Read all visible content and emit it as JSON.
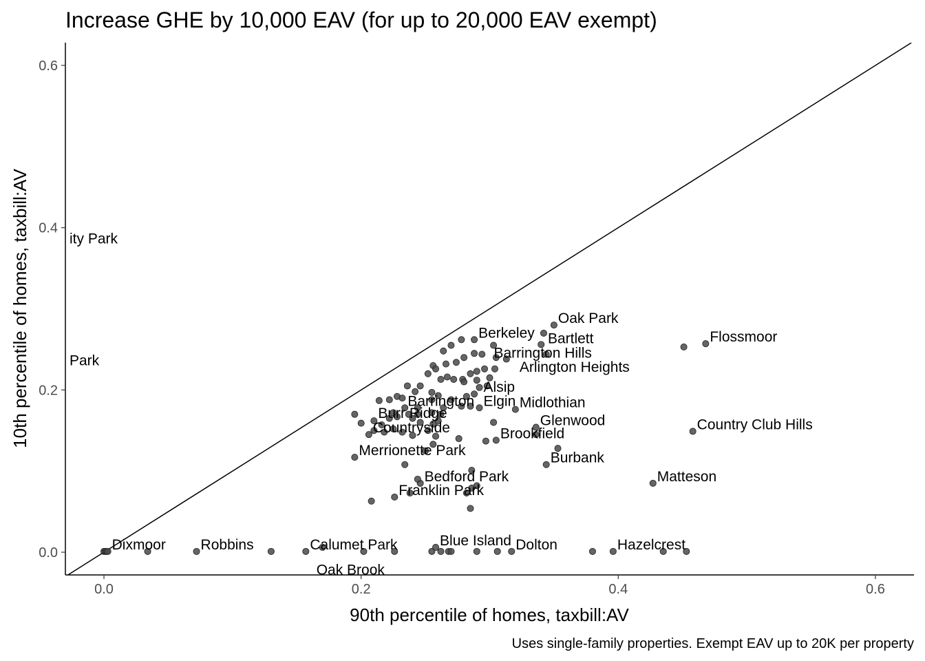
{
  "chart_data": {
    "type": "scatter",
    "title": "Increase GHE by 10,000 EAV (for up to 20,000 EAV exempt)",
    "xlabel": "90th percentile of homes, taxbill:AV",
    "ylabel": "10th percentile of homes, taxbill:AV",
    "caption": "Uses single-family properties. Exempt EAV up to 20K per property",
    "xlim": [
      -0.03,
      0.63
    ],
    "ylim": [
      -0.028,
      0.628
    ],
    "x_ticks": [
      "0.0",
      "0.2",
      "0.4",
      "0.6"
    ],
    "y_ticks": [
      "0.0",
      "0.2",
      "0.4",
      "0.6"
    ],
    "x_tick_values": [
      0.0,
      0.2,
      0.4,
      0.6
    ],
    "y_tick_values": [
      0.0,
      0.2,
      0.4,
      0.6
    ],
    "reference_line": "y = x",
    "grid": false,
    "labeled_points": [
      {
        "label": "Oak Park",
        "x": 0.35,
        "y": 0.28
      },
      {
        "label": "Flossmoor",
        "x": 0.468,
        "y": 0.257
      },
      {
        "label": "Berkeley",
        "x": 0.288,
        "y": 0.262
      },
      {
        "label": "Bartlett",
        "x": 0.342,
        "y": 0.255
      },
      {
        "label": "Barrington Hills",
        "x": 0.3,
        "y": 0.237
      },
      {
        "label": "Arlington Heights",
        "x": 0.32,
        "y": 0.22
      },
      {
        "label": "Alsip",
        "x": 0.292,
        "y": 0.195
      },
      {
        "label": "Midlothian",
        "x": 0.32,
        "y": 0.176
      },
      {
        "label": "Barrington",
        "x": 0.233,
        "y": 0.178
      },
      {
        "label": "Elgin",
        "x": 0.292,
        "y": 0.178
      },
      {
        "label": "Burr Ridge",
        "x": 0.21,
        "y": 0.163
      },
      {
        "label": "Glenwood",
        "x": 0.336,
        "y": 0.154
      },
      {
        "label": "Country Club Hills",
        "x": 0.458,
        "y": 0.149
      },
      {
        "label": "Countryside",
        "x": 0.206,
        "y": 0.145
      },
      {
        "label": "Brookfield",
        "x": 0.305,
        "y": 0.138
      },
      {
        "label": "Merrionette Park",
        "x": 0.195,
        "y": 0.117
      },
      {
        "label": "Burbank",
        "x": 0.344,
        "y": 0.108
      },
      {
        "label": "Matteson",
        "x": 0.427,
        "y": 0.085
      },
      {
        "label": "Bedford Park",
        "x": 0.246,
        "y": 0.085
      },
      {
        "label": "Franklin Park",
        "x": 0.226,
        "y": 0.068
      },
      {
        "label": "Dixmoor",
        "x": 0.003,
        "y": 0.001
      },
      {
        "label": "Robbins",
        "x": 0.072,
        "y": 0.001
      },
      {
        "label": "Calumet Park",
        "x": 0.157,
        "y": 0.001
      },
      {
        "label": "Blue Island",
        "x": 0.258,
        "y": 0.006
      },
      {
        "label": "Dolton",
        "x": 0.317,
        "y": 0.001
      },
      {
        "label": "Hazelcrest",
        "x": 0.396,
        "y": 0.001
      },
      {
        "label": "ity Park",
        "x": -0.03,
        "y": 0.378
      },
      {
        "label": "Park",
        "x": -0.03,
        "y": 0.228
      },
      {
        "label": "Oak Brook",
        "x": 0.162,
        "y": -0.03
      }
    ],
    "points": [
      [
        0.0,
        0.001
      ],
      [
        0.001,
        0.001
      ],
      [
        0.002,
        0.001
      ],
      [
        0.003,
        0.001
      ],
      [
        0.034,
        0.001
      ],
      [
        0.072,
        0.001
      ],
      [
        0.13,
        0.001
      ],
      [
        0.157,
        0.001
      ],
      [
        0.17,
        0.006
      ],
      [
        0.202,
        0.001
      ],
      [
        0.226,
        0.001
      ],
      [
        0.255,
        0.001
      ],
      [
        0.258,
        0.006
      ],
      [
        0.262,
        0.001
      ],
      [
        0.268,
        0.001
      ],
      [
        0.27,
        0.001
      ],
      [
        0.29,
        0.001
      ],
      [
        0.306,
        0.001
      ],
      [
        0.317,
        0.001
      ],
      [
        0.38,
        0.001
      ],
      [
        0.396,
        0.001
      ],
      [
        0.435,
        0.001
      ],
      [
        0.453,
        0.001
      ],
      [
        0.35,
        0.28
      ],
      [
        0.342,
        0.27
      ],
      [
        0.468,
        0.257
      ],
      [
        0.451,
        0.253
      ],
      [
        0.288,
        0.262
      ],
      [
        0.278,
        0.262
      ],
      [
        0.34,
        0.256
      ],
      [
        0.344,
        0.244
      ],
      [
        0.303,
        0.255
      ],
      [
        0.27,
        0.255
      ],
      [
        0.264,
        0.248
      ],
      [
        0.256,
        0.23
      ],
      [
        0.258,
        0.226
      ],
      [
        0.266,
        0.232
      ],
      [
        0.274,
        0.234
      ],
      [
        0.28,
        0.24
      ],
      [
        0.288,
        0.245
      ],
      [
        0.294,
        0.244
      ],
      [
        0.305,
        0.24
      ],
      [
        0.313,
        0.238
      ],
      [
        0.296,
        0.226
      ],
      [
        0.304,
        0.226
      ],
      [
        0.29,
        0.223
      ],
      [
        0.285,
        0.22
      ],
      [
        0.279,
        0.213
      ],
      [
        0.272,
        0.213
      ],
      [
        0.267,
        0.216
      ],
      [
        0.262,
        0.213
      ],
      [
        0.28,
        0.21
      ],
      [
        0.29,
        0.212
      ],
      [
        0.3,
        0.215
      ],
      [
        0.252,
        0.22
      ],
      [
        0.246,
        0.205
      ],
      [
        0.236,
        0.205
      ],
      [
        0.242,
        0.198
      ],
      [
        0.228,
        0.192
      ],
      [
        0.222,
        0.188
      ],
      [
        0.214,
        0.187
      ],
      [
        0.232,
        0.19
      ],
      [
        0.255,
        0.197
      ],
      [
        0.26,
        0.193
      ],
      [
        0.27,
        0.188
      ],
      [
        0.282,
        0.192
      ],
      [
        0.288,
        0.195
      ],
      [
        0.292,
        0.203
      ],
      [
        0.298,
        0.205
      ],
      [
        0.278,
        0.18
      ],
      [
        0.264,
        0.178
      ],
      [
        0.255,
        0.188
      ],
      [
        0.244,
        0.178
      ],
      [
        0.234,
        0.178
      ],
      [
        0.225,
        0.172
      ],
      [
        0.237,
        0.17
      ],
      [
        0.244,
        0.17
      ],
      [
        0.255,
        0.172
      ],
      [
        0.262,
        0.17
      ],
      [
        0.285,
        0.18
      ],
      [
        0.292,
        0.178
      ],
      [
        0.32,
        0.176
      ],
      [
        0.195,
        0.17
      ],
      [
        0.2,
        0.159
      ],
      [
        0.21,
        0.162
      ],
      [
        0.216,
        0.157
      ],
      [
        0.222,
        0.165
      ],
      [
        0.228,
        0.167
      ],
      [
        0.24,
        0.165
      ],
      [
        0.246,
        0.16
      ],
      [
        0.256,
        0.158
      ],
      [
        0.26,
        0.162
      ],
      [
        0.252,
        0.15
      ],
      [
        0.258,
        0.143
      ],
      [
        0.206,
        0.145
      ],
      [
        0.21,
        0.15
      ],
      [
        0.218,
        0.148
      ],
      [
        0.225,
        0.152
      ],
      [
        0.232,
        0.148
      ],
      [
        0.24,
        0.144
      ],
      [
        0.336,
        0.154
      ],
      [
        0.336,
        0.145
      ],
      [
        0.276,
        0.14
      ],
      [
        0.297,
        0.137
      ],
      [
        0.305,
        0.138
      ],
      [
        0.303,
        0.16
      ],
      [
        0.458,
        0.149
      ],
      [
        0.353,
        0.128
      ],
      [
        0.256,
        0.133
      ],
      [
        0.25,
        0.125
      ],
      [
        0.195,
        0.117
      ],
      [
        0.234,
        0.108
      ],
      [
        0.344,
        0.108
      ],
      [
        0.286,
        0.101
      ],
      [
        0.427,
        0.085
      ],
      [
        0.246,
        0.085
      ],
      [
        0.244,
        0.09
      ],
      [
        0.29,
        0.082
      ],
      [
        0.286,
        0.079
      ],
      [
        0.282,
        0.073
      ],
      [
        0.226,
        0.068
      ],
      [
        0.238,
        0.073
      ],
      [
        0.208,
        0.063
      ],
      [
        0.285,
        0.054
      ]
    ]
  }
}
